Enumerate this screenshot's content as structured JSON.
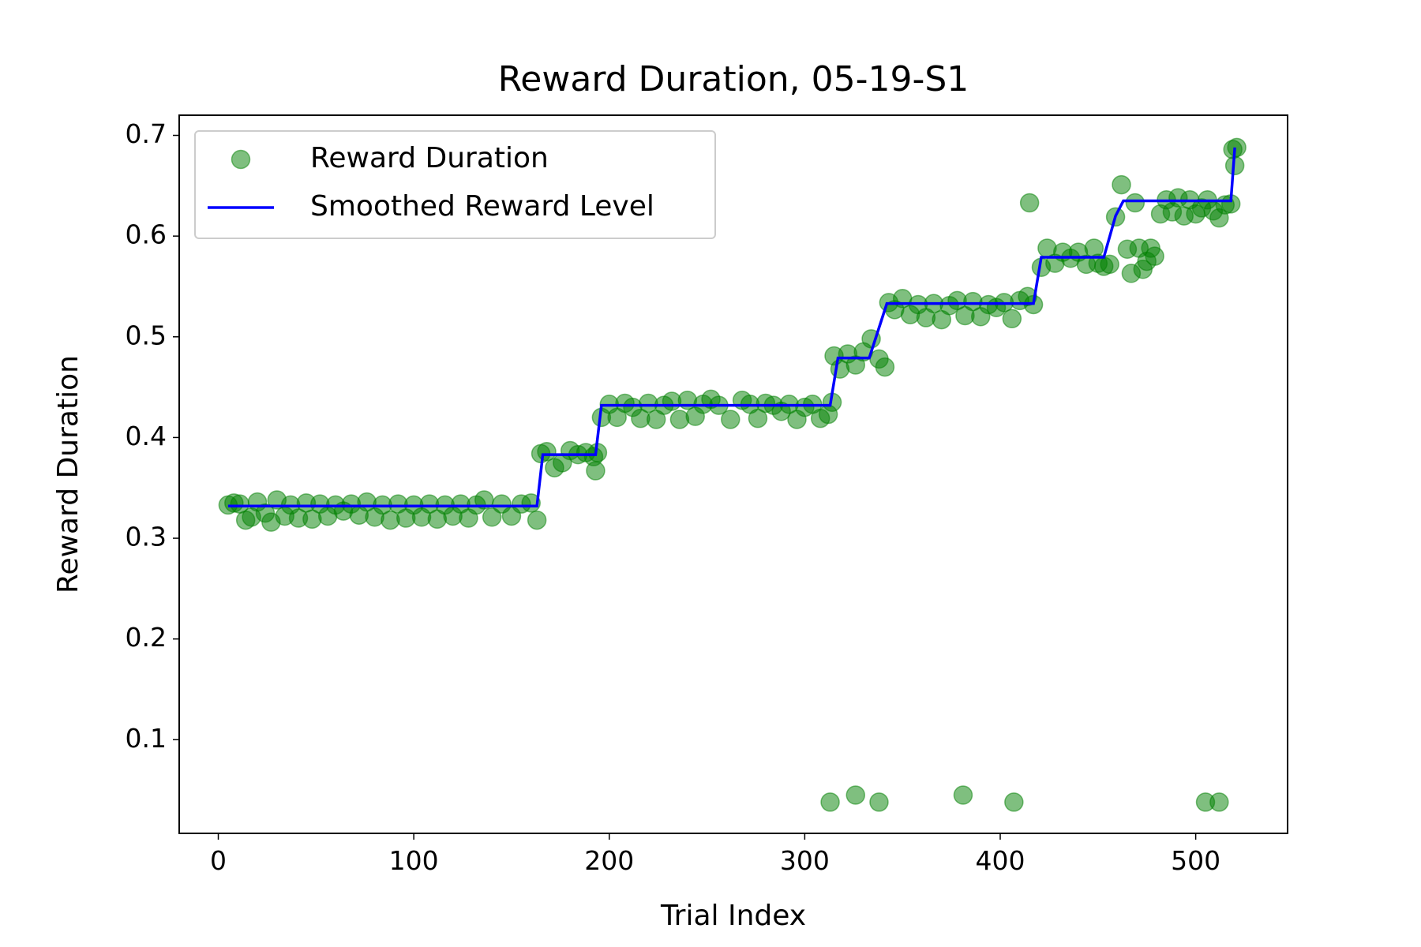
{
  "chart_data": {
    "type": "scatter",
    "title": "Reward Duration, 05-19-S1",
    "x_label": "Trial Index",
    "y_label": "Reward Duration",
    "xlim": [
      -20,
      547
    ],
    "ylim": [
      0.007,
      0.72
    ],
    "xticks": [
      0,
      100,
      200,
      300,
      400,
      500
    ],
    "yticks": [
      0.1,
      0.2,
      0.3,
      0.4,
      0.5,
      0.6,
      0.7
    ],
    "legend": "upper left",
    "series": [
      {
        "name": "Reward Duration",
        "type": "scatter",
        "color": "#008000",
        "x": [
          5,
          8,
          11,
          14,
          17,
          20,
          24,
          27,
          30,
          34,
          37,
          41,
          45,
          48,
          52,
          56,
          60,
          64,
          68,
          72,
          76,
          80,
          84,
          88,
          92,
          96,
          100,
          104,
          108,
          112,
          116,
          120,
          124,
          128,
          132,
          136,
          140,
          145,
          150,
          155,
          160,
          163,
          165,
          168,
          172,
          176,
          180,
          184,
          188,
          192,
          193,
          194,
          196,
          200,
          204,
          208,
          212,
          216,
          220,
          224,
          228,
          232,
          236,
          240,
          244,
          248,
          252,
          256,
          262,
          268,
          272,
          276,
          280,
          284,
          288,
          292,
          296,
          300,
          304,
          308,
          312,
          314,
          315,
          318,
          322,
          326,
          330,
          334,
          338,
          341,
          343,
          346,
          350,
          354,
          358,
          362,
          366,
          370,
          374,
          378,
          382,
          386,
          390,
          394,
          398,
          402,
          406,
          410,
          414,
          415,
          417,
          421,
          424,
          428,
          432,
          436,
          440,
          444,
          448,
          450,
          453,
          456,
          459,
          462,
          465,
          467,
          469,
          471,
          473,
          475,
          477,
          479,
          482,
          485,
          488,
          491,
          494,
          497,
          500,
          503,
          506,
          509,
          512,
          515,
          518,
          519,
          520,
          521,
          313,
          326,
          338,
          381,
          407,
          505,
          512
        ],
        "values": [
          0.333,
          0.335,
          0.334,
          0.318,
          0.321,
          0.336,
          0.325,
          0.316,
          0.338,
          0.322,
          0.333,
          0.32,
          0.335,
          0.319,
          0.334,
          0.322,
          0.333,
          0.327,
          0.334,
          0.323,
          0.336,
          0.321,
          0.333,
          0.318,
          0.334,
          0.32,
          0.333,
          0.321,
          0.334,
          0.319,
          0.333,
          0.322,
          0.334,
          0.32,
          0.333,
          0.338,
          0.321,
          0.334,
          0.322,
          0.334,
          0.335,
          0.318,
          0.384,
          0.386,
          0.37,
          0.375,
          0.387,
          0.383,
          0.385,
          0.381,
          0.367,
          0.385,
          0.42,
          0.433,
          0.42,
          0.434,
          0.43,
          0.419,
          0.434,
          0.418,
          0.432,
          0.436,
          0.418,
          0.437,
          0.421,
          0.433,
          0.438,
          0.432,
          0.418,
          0.437,
          0.433,
          0.419,
          0.434,
          0.432,
          0.426,
          0.433,
          0.418,
          0.43,
          0.433,
          0.419,
          0.423,
          0.435,
          0.481,
          0.468,
          0.483,
          0.472,
          0.485,
          0.498,
          0.478,
          0.47,
          0.534,
          0.527,
          0.538,
          0.522,
          0.532,
          0.519,
          0.533,
          0.517,
          0.531,
          0.536,
          0.521,
          0.535,
          0.52,
          0.532,
          0.529,
          0.534,
          0.518,
          0.536,
          0.54,
          0.633,
          0.532,
          0.569,
          0.588,
          0.573,
          0.584,
          0.578,
          0.584,
          0.572,
          0.588,
          0.573,
          0.57,
          0.572,
          0.619,
          0.651,
          0.587,
          0.563,
          0.633,
          0.588,
          0.567,
          0.575,
          0.588,
          0.58,
          0.622,
          0.636,
          0.624,
          0.638,
          0.62,
          0.636,
          0.622,
          0.628,
          0.636,
          0.625,
          0.618,
          0.631,
          0.632,
          0.686,
          0.67,
          0.688,
          0.038,
          0.045,
          0.038,
          0.045,
          0.038,
          0.038,
          0.038
        ]
      },
      {
        "name": "Smoothed Reward Level",
        "type": "line",
        "color": "#0000ff",
        "x": [
          5,
          163,
          166,
          193,
          196,
          313,
          317,
          333,
          342,
          417,
          421,
          453,
          459,
          463,
          518,
          520
        ],
        "values": [
          0.332,
          0.332,
          0.383,
          0.383,
          0.432,
          0.432,
          0.479,
          0.479,
          0.533,
          0.533,
          0.579,
          0.579,
          0.62,
          0.635,
          0.635,
          0.688
        ]
      }
    ]
  }
}
